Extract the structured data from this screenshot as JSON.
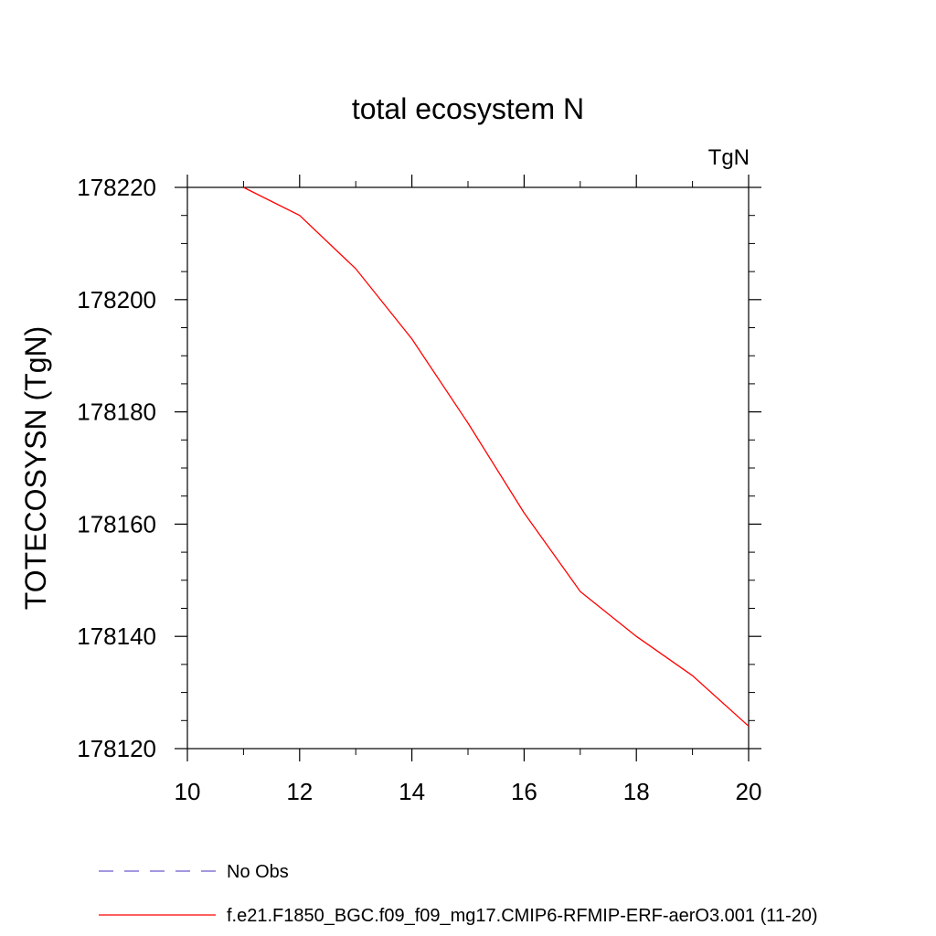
{
  "chart_data": {
    "type": "line",
    "title": "total ecosystem N",
    "ylabel": "TOTECOSYSN  (TgN)",
    "xlabel": "",
    "units_label": "TgN",
    "xlim": [
      10,
      20
    ],
    "ylim": [
      178120,
      178220
    ],
    "x_ticks": [
      10,
      12,
      14,
      16,
      18,
      20
    ],
    "y_ticks": [
      178120,
      178140,
      178160,
      178180,
      178200,
      178220
    ],
    "grid": false,
    "legend_position": "bottom",
    "series": [
      {
        "name": "No Obs",
        "color": "#6a5acd",
        "style": "dashed",
        "x": [],
        "values": []
      },
      {
        "name": "f.e21.F1850_BGC.f09_f09_mg17.CMIP6-RFMIP-ERF-aerO3.001 (11-20)",
        "color": "#ff0000",
        "style": "solid",
        "x": [
          11,
          12,
          13,
          14,
          15,
          16,
          17,
          18,
          19,
          20
        ],
        "values": [
          178220,
          178215,
          178205.5,
          178193,
          178178,
          178162,
          178148,
          178140,
          178133,
          178124
        ]
      }
    ]
  }
}
